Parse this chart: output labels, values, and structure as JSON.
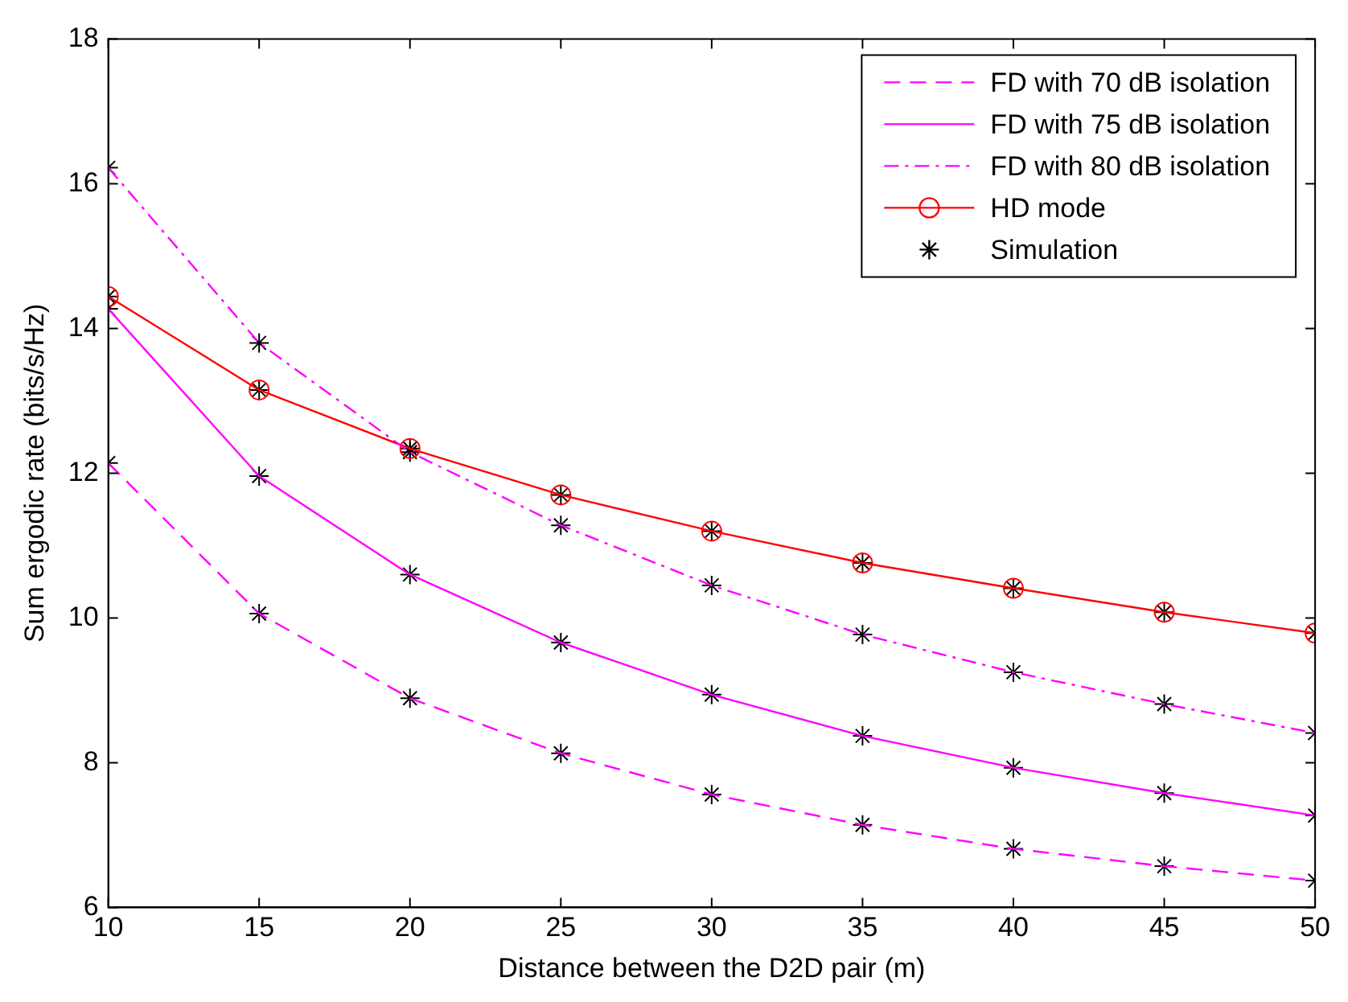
{
  "chart_data": {
    "type": "line",
    "xlabel": "Distance between the D2D pair (m)",
    "ylabel": "Sum ergodic rate (bits/s/Hz)",
    "x": [
      10,
      15,
      20,
      25,
      30,
      35,
      40,
      45,
      50
    ],
    "xlim": [
      10,
      50
    ],
    "xticks": [
      10,
      15,
      20,
      25,
      30,
      35,
      40,
      45,
      50
    ],
    "ylim": [
      6,
      18
    ],
    "yticks": [
      6,
      8,
      10,
      12,
      14,
      16,
      18
    ],
    "grid": false,
    "legend": "top right",
    "series": [
      {
        "name": "FD with 70 dB isolation",
        "color": "#ff00ff",
        "line_style": "dashed",
        "marker": "none",
        "values": [
          12.14,
          10.06,
          8.89,
          8.13,
          7.56,
          7.14,
          6.81,
          6.57,
          6.37
        ]
      },
      {
        "name": "FD with 75 dB isolation",
        "color": "#ff00ff",
        "line_style": "solid",
        "marker": "none",
        "values": [
          14.27,
          11.96,
          10.6,
          9.66,
          8.94,
          8.37,
          7.93,
          7.58,
          7.27
        ]
      },
      {
        "name": "FD with 80 dB isolation",
        "color": "#ff00ff",
        "line_style": "dashdot",
        "marker": "none",
        "values": [
          16.22,
          13.8,
          12.29,
          11.28,
          10.45,
          9.77,
          9.25,
          8.81,
          8.41
        ]
      },
      {
        "name": "HD mode",
        "color": "#ff0000",
        "line_style": "solid",
        "marker": "circle",
        "values": [
          14.44,
          13.15,
          12.34,
          11.7,
          11.2,
          10.76,
          10.41,
          10.08,
          9.79
        ]
      },
      {
        "name": "Simulation",
        "type": "scatter",
        "color": "#000000",
        "marker": "cross",
        "x": [
          10,
          15,
          20,
          25,
          30,
          35,
          40,
          45,
          50,
          10,
          15,
          20,
          25,
          30,
          35,
          40,
          45,
          50,
          10,
          15,
          20,
          25,
          30,
          35,
          40,
          45,
          50,
          10,
          15,
          20,
          25,
          30,
          35,
          40,
          45,
          50
        ],
        "values": [
          12.14,
          10.06,
          8.89,
          8.13,
          7.56,
          7.14,
          6.81,
          6.57,
          6.37,
          14.27,
          11.96,
          10.6,
          9.66,
          8.94,
          8.37,
          7.93,
          7.58,
          7.27,
          16.22,
          13.8,
          12.29,
          11.28,
          10.45,
          9.77,
          9.25,
          8.81,
          8.41,
          14.44,
          13.15,
          12.34,
          11.7,
          11.2,
          10.76,
          10.41,
          10.08,
          9.79
        ]
      }
    ]
  }
}
